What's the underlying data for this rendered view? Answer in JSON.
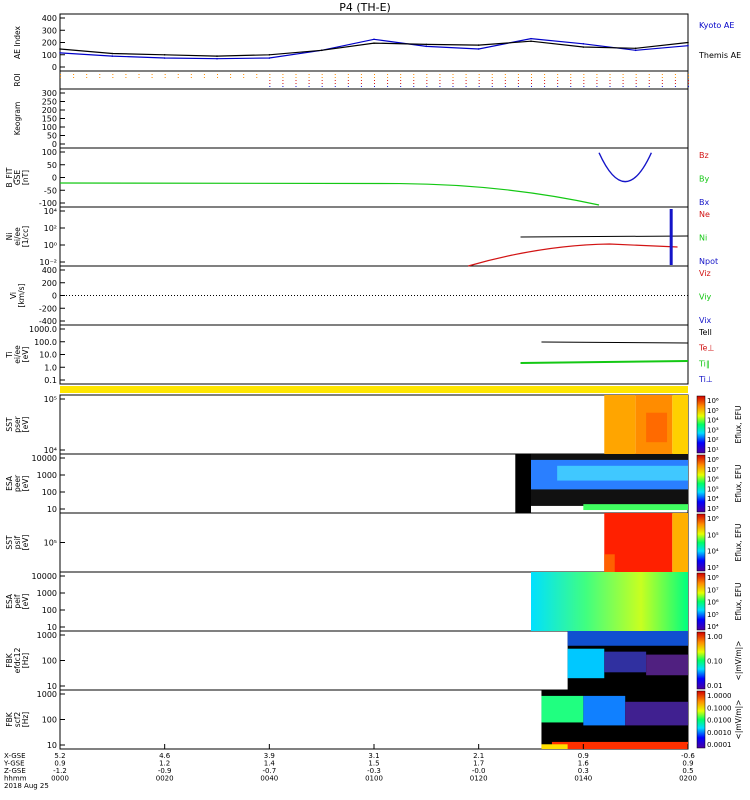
{
  "title": "P4 (TH-E)",
  "colors": {
    "kyoto": "#0000c8",
    "themis": "#000000",
    "red": "#d21414",
    "green": "#14c814",
    "blue": "#1414c8",
    "yellow": "#ffe600"
  },
  "panels": [
    {
      "id": "ae",
      "ylabel": [
        "AE Index"
      ],
      "ticks": [
        "400",
        "300",
        "200",
        "100",
        "0"
      ],
      "legend": [
        "Kyoto AE",
        "Themis AE"
      ]
    },
    {
      "id": "roi",
      "ylabel": [
        "ROI"
      ],
      "ticks": [],
      "legend": []
    },
    {
      "id": "keogram",
      "ylabel": [
        "Keogram"
      ],
      "ticks": [
        "300",
        "250",
        "200",
        "150",
        "100",
        "50",
        "0"
      ],
      "legend": []
    },
    {
      "id": "bfit",
      "ylabel": [
        "B_FIT",
        "GSE",
        "[nT]"
      ],
      "ticks": [
        "100",
        "50",
        "0",
        "-50",
        "-100"
      ],
      "legend": [
        "Bz",
        "By",
        "Bx"
      ]
    },
    {
      "id": "ni",
      "ylabel": [
        "Ni",
        "ei/ee",
        "[1/cc]"
      ],
      "ticks": [
        "10⁴",
        "10²",
        "10⁰",
        "10⁻²"
      ],
      "legend": [
        "Ne",
        "Ni",
        "Npot"
      ]
    },
    {
      "id": "vi",
      "ylabel": [
        "Vi",
        "[km/s]"
      ],
      "ticks": [
        "400",
        "200",
        "0",
        "-200",
        "-400"
      ],
      "legend": [
        "Viz",
        "Viy",
        "Vix"
      ]
    },
    {
      "id": "ti",
      "ylabel": [
        "Ti",
        "ei/ee",
        "[eV]"
      ],
      "ticks": [
        "1000.0",
        "100.0",
        "10.0",
        "1.0",
        "0.1"
      ],
      "legend": [
        "Tell",
        "Te⊥",
        "Ti∥",
        "Ti⊥"
      ]
    },
    {
      "id": "sst1",
      "ylabel": [
        "SST",
        "pser",
        "[eV]"
      ],
      "ticks": [
        "10⁵",
        "10⁴"
      ],
      "legend": []
    },
    {
      "id": "esa1",
      "ylabel": [
        "ESA",
        "peer",
        "[eV]"
      ],
      "ticks": [
        "10000",
        "1000",
        "100",
        "10"
      ],
      "legend": []
    },
    {
      "id": "sst2",
      "ylabel": [
        "SST",
        "psif",
        "[eV]"
      ],
      "ticks": [
        "10⁵"
      ],
      "legend": []
    },
    {
      "id": "esa2",
      "ylabel": [
        "ESA",
        "peif",
        "[eV]"
      ],
      "ticks": [
        "10000",
        "1000",
        "100",
        "10"
      ],
      "legend": []
    },
    {
      "id": "fbk1",
      "ylabel": [
        "FBK",
        "efdc12",
        "[Hz]"
      ],
      "ticks": [
        "1000",
        "100",
        "10"
      ],
      "legend": []
    },
    {
      "id": "fbk2",
      "ylabel": [
        "FBK",
        "scf2",
        "[Hz]"
      ],
      "ticks": [
        "1000",
        "100",
        "10"
      ],
      "legend": []
    }
  ],
  "colorbars": [
    {
      "label": "Eflux, EFU",
      "ticks": [
        "10⁶",
        "10⁵",
        "10⁴",
        "10³",
        "10²",
        "10¹"
      ]
    },
    {
      "label": "Eflux, EFU",
      "ticks": [
        "10⁸",
        "10⁷",
        "10⁶",
        "10⁵",
        "10⁴",
        "10³"
      ]
    },
    {
      "label": "Eflux, EFU",
      "ticks": [
        "10⁶",
        "10⁵",
        "10⁴",
        "10³"
      ]
    },
    {
      "label": "Eflux, EFU",
      "ticks": [
        "10⁸",
        "10⁷",
        "10⁶",
        "10⁵",
        "10⁴"
      ]
    },
    {
      "label": "<|mV/m|>",
      "ticks": [
        "1.00",
        "0.10",
        "0.01"
      ]
    },
    {
      "label": "<|mV/m|>",
      "ticks": [
        "1.0000",
        "0.1000",
        "0.0100",
        "0.0010",
        "0.0001"
      ]
    }
  ],
  "xaxis": {
    "row_labels": [
      "X-GSE",
      "Y-GSE",
      "Z-GSE",
      "hhmm",
      "2018 Aug 25"
    ],
    "columns": [
      [
        "5.2",
        "0.9",
        "-1.2",
        "0000"
      ],
      [
        "4.6",
        "1.2",
        "-0.9",
        "0020"
      ],
      [
        "3.9",
        "1.4",
        "-0.7",
        "0040"
      ],
      [
        "3.1",
        "1.5",
        "-0.3",
        "0100"
      ],
      [
        "2.1",
        "1.7",
        "-0.0",
        "0120"
      ],
      [
        "0.9",
        "1.6",
        "0.3",
        "0140"
      ],
      [
        "-0.6",
        "0.9",
        "0.5",
        "0200"
      ]
    ]
  },
  "chart_data": {
    "type": "line",
    "title": "P4 (TH-E)",
    "x_range_hhmm": [
      "0000",
      "0200"
    ],
    "series": [
      {
        "name": "Kyoto AE",
        "x_min": [
          0,
          10,
          20,
          30,
          40,
          50,
          60,
          70,
          80,
          90,
          100,
          110,
          120
        ],
        "values": [
          120,
          95,
          80,
          75,
          80,
          140,
          225,
          170,
          150,
          230,
          190,
          140,
          175
        ]
      },
      {
        "name": "Themis AE",
        "x_min": [
          0,
          10,
          20,
          30,
          40,
          50,
          60,
          70,
          80,
          90,
          100,
          110,
          120
        ],
        "values": [
          150,
          115,
          105,
          95,
          105,
          140,
          195,
          185,
          180,
          210,
          165,
          155,
          200
        ]
      }
    ],
    "ylim": [
      -20,
      420
    ]
  }
}
